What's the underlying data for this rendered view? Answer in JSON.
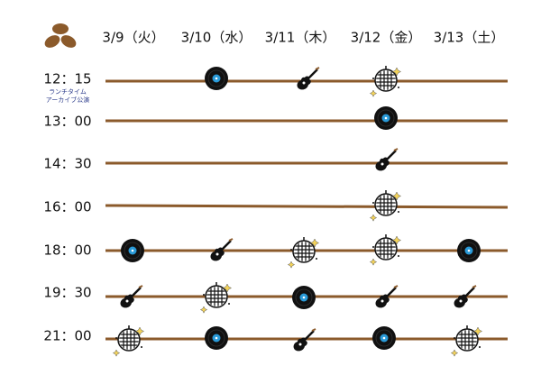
{
  "header": {
    "days": [
      "3/9（火）",
      "3/10（水）",
      "3/11（木）",
      "3/12（金）",
      "3/13（土）"
    ]
  },
  "times": [
    "12：15",
    "13：00",
    "14：30",
    "16：00",
    "18：00",
    "19：30",
    "21：00"
  ],
  "note": [
    "ランチタイム",
    "アーカイブ公演"
  ]
}
